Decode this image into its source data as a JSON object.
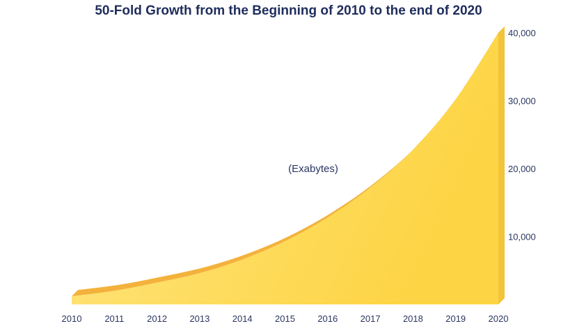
{
  "chart_data": {
    "type": "area",
    "title": "50-Fold Growth from the Beginning of 2010 to the end of 2020",
    "annotation": "(Exabytes)",
    "x": [
      2010,
      2011,
      2012,
      2013,
      2014,
      2015,
      2016,
      2017,
      2018,
      2019,
      2020
    ],
    "x_tick_labels": [
      "2010",
      "2011",
      "2012",
      "2013",
      "2014",
      "2015",
      "2016",
      "2017",
      "2018",
      "2019",
      "2020"
    ],
    "values": [
      1200,
      2000,
      3200,
      4600,
      6600,
      9300,
      12800,
      17200,
      22800,
      30200,
      40000
    ],
    "y_ticks": [
      {
        "value": 10000,
        "label": "10,000"
      },
      {
        "value": 20000,
        "label": "20,000"
      },
      {
        "value": 30000,
        "label": "30,000"
      },
      {
        "value": 40000,
        "label": "40,000"
      }
    ],
    "ylim": [
      0,
      40000
    ],
    "y_axis_side": "right",
    "grid": false,
    "colors": {
      "area_fill": "#fdd94a",
      "area_highlight": "#fee681",
      "ridge": "#f3b23c",
      "text": "#2a3560",
      "title": "#1f2d5c"
    }
  }
}
